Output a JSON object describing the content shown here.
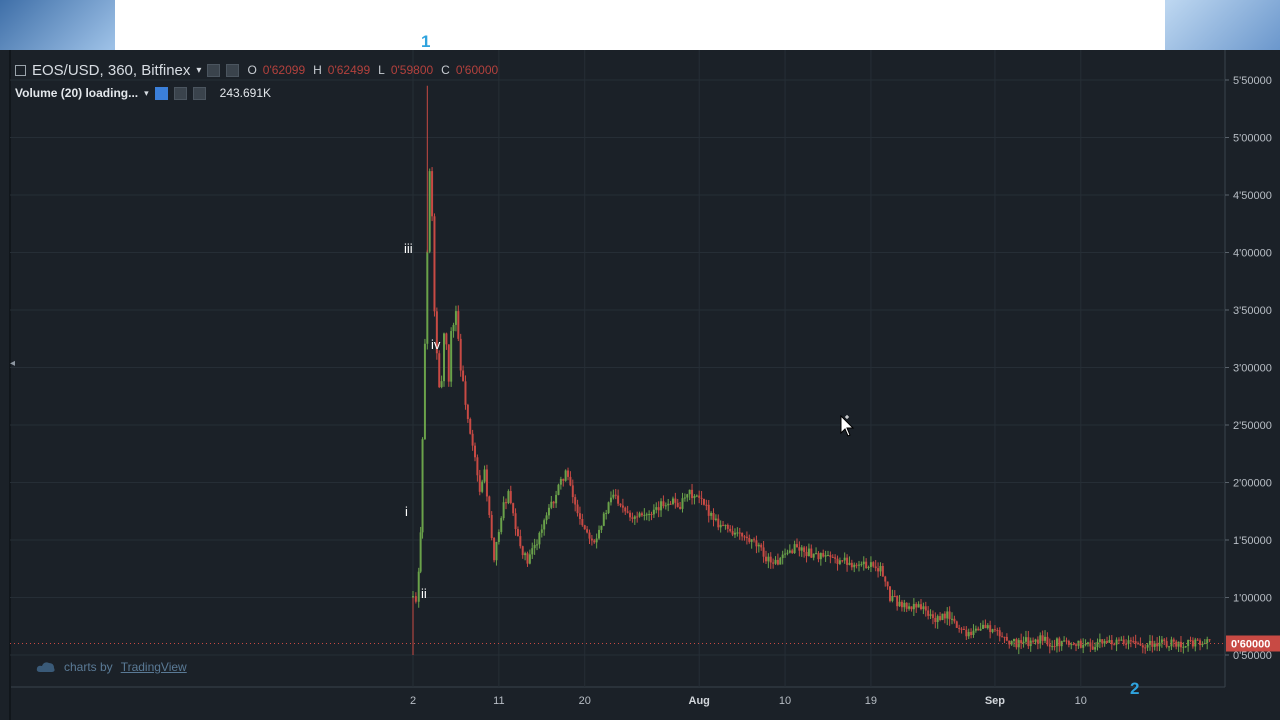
{
  "slide": {
    "label_top": "1",
    "label_bottom": "2"
  },
  "legend": {
    "symbol": "EOS/USD, 360, Bitfinex",
    "open_label": "O",
    "open": "0'62099",
    "high_label": "H",
    "high": "0'62499",
    "low_label": "L",
    "low": "0'59800",
    "close_label": "C",
    "close": "0'60000"
  },
  "volume_legend": {
    "title": "Volume (20) loading...",
    "value": "243.691K"
  },
  "watermark": {
    "prefix": "charts by",
    "link": "TradingView"
  },
  "colors": {
    "up": "#6aa24a",
    "down": "#c84a44",
    "background": "#1b2128",
    "grid": "#262e36",
    "price_tag": "#c84a44"
  },
  "chart_data": {
    "type": "candlestick",
    "title": "EOS/USD, 360, Bitfinex",
    "x_ticks": [
      {
        "label": "2",
        "bold": false
      },
      {
        "label": "11",
        "bold": false
      },
      {
        "label": "20",
        "bold": false
      },
      {
        "label": "Aug",
        "bold": true
      },
      {
        "label": "10",
        "bold": false
      },
      {
        "label": "19",
        "bold": false
      },
      {
        "label": "Sep",
        "bold": true
      },
      {
        "label": "10",
        "bold": false
      }
    ],
    "y_ticks": [
      "5'50000",
      "5'00000",
      "4'50000",
      "4'00000",
      "3'50000",
      "3'00000",
      "2'50000",
      "2'00000",
      "1'50000",
      "1'00000",
      "0'50000"
    ],
    "ylim": [
      0.5,
      5.5
    ],
    "last_price": 0.6,
    "last_price_label": "0'60000",
    "wave_labels": [
      "i",
      "ii",
      "iii",
      "iv"
    ],
    "series": [
      {
        "days": [
          0.0,
          0.3,
          0.6,
          0.8,
          1.0,
          1.25,
          1.5,
          1.75,
          2.0,
          2.25,
          2.5,
          2.75,
          3.0,
          3.25,
          3.5,
          3.75,
          4.0,
          4.5,
          5.0,
          5.5,
          6.0,
          6.5,
          7.0,
          7.5,
          8.0,
          8.5,
          9.0,
          9.5,
          10.0,
          10.5,
          11.0,
          12.0,
          13.0,
          14.0,
          15.0,
          16.0,
          17.0,
          18.0,
          19.0,
          20.0,
          21.0,
          22.0,
          23.0,
          24.0,
          25.0,
          26.0,
          27.0,
          28.0,
          29.0,
          30.0,
          31.0,
          32.0,
          33.0,
          34.0,
          35.0,
          36.0,
          37.0,
          38.0,
          39.0,
          40.0,
          41.0,
          42.0,
          43.0,
          44.0,
          45.0,
          46.0,
          47.0,
          48.0,
          49.0,
          50.0,
          51.0,
          52.0,
          53.0,
          54.0,
          55.0,
          56.0,
          57.0,
          58.0,
          59.0,
          60.0,
          61.0,
          62.0,
          63.0,
          64.0,
          65.0,
          66.0,
          67.0,
          68.0,
          69.0,
          70.0,
          71.0,
          72.0,
          72.5,
          73.0,
          74.0,
          75.0,
          76.0,
          77.0,
          78.0,
          79.0,
          80.0,
          81.0,
          82.0,
          83.0,
          83.5
        ],
        "closes": [
          1.0,
          0.95,
          1.2,
          1.6,
          2.4,
          3.2,
          4.0,
          4.7,
          4.3,
          3.5,
          3.1,
          2.8,
          2.9,
          3.3,
          3.2,
          2.9,
          3.3,
          3.5,
          3.0,
          2.7,
          2.4,
          2.2,
          1.9,
          2.1,
          1.7,
          1.3,
          1.6,
          1.8,
          1.9,
          1.7,
          1.5,
          1.3,
          1.5,
          1.7,
          1.9,
          2.1,
          1.8,
          1.6,
          1.5,
          1.7,
          1.9,
          1.8,
          1.7,
          1.75,
          1.7,
          1.8,
          1.85,
          1.8,
          1.9,
          1.85,
          1.75,
          1.65,
          1.6,
          1.55,
          1.5,
          1.45,
          1.35,
          1.3,
          1.35,
          1.45,
          1.4,
          1.38,
          1.35,
          1.33,
          1.32,
          1.3,
          1.28,
          1.3,
          1.25,
          1.0,
          0.95,
          0.9,
          0.95,
          0.85,
          0.8,
          0.85,
          0.75,
          0.7,
          0.72,
          0.75,
          0.7,
          0.65,
          0.6,
          0.62,
          0.6,
          0.65,
          0.6,
          0.62,
          0.6,
          0.6,
          0.58,
          0.6,
          0.6,
          0.62,
          0.6,
          0.6,
          0.6,
          0.6,
          0.6,
          0.6,
          0.6,
          0.6,
          0.6,
          0.6,
          0.6
        ]
      }
    ]
  }
}
